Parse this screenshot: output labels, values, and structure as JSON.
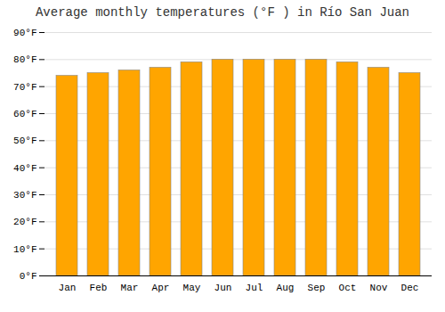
{
  "chart_data": {
    "type": "bar",
    "title": "Average monthly temperatures (°F ) in Río San Juan",
    "categories": [
      "Jan",
      "Feb",
      "Mar",
      "Apr",
      "May",
      "Jun",
      "Jul",
      "Aug",
      "Sep",
      "Oct",
      "Nov",
      "Dec"
    ],
    "values": [
      74,
      75,
      76,
      77,
      79,
      80,
      80,
      80,
      80,
      79,
      77,
      75
    ],
    "color": "#FFA500",
    "ylim": [
      0,
      90
    ],
    "yticks": [
      {
        "value": 0,
        "label": "0°F"
      },
      {
        "value": 10,
        "label": "10°F"
      },
      {
        "value": 20,
        "label": "20°F"
      },
      {
        "value": 30,
        "label": "30°F"
      },
      {
        "value": 40,
        "label": "40°F"
      },
      {
        "value": 50,
        "label": "50°F"
      },
      {
        "value": 60,
        "label": "60°F"
      },
      {
        "value": 70,
        "label": "70°F"
      },
      {
        "value": 80,
        "label": "80°F"
      },
      {
        "value": 90,
        "label": "90°F"
      }
    ],
    "grid": true
  }
}
